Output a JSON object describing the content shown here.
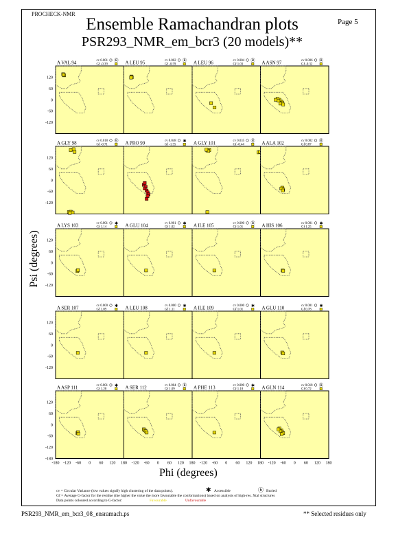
{
  "header": {
    "program": "PROCHECK-NMR",
    "title": "Ensemble Ramachandran plots",
    "subtitle": "PSR293_NMR_em_bcr3 (20 models)**",
    "page_label": "Page  5"
  },
  "footer": {
    "filename": "PSR293_NMR_em_bcr3_08_ensramach.ps",
    "note": "** Selected residues only",
    "legend_line1": "cv = Circular Variance (low values signify high clustering of the data points).",
    "accessible": "Accessible",
    "buried": "Buried",
    "legend_line2": "Gf = Average G-factor for the residue (the higher the value the more favourable the conformations) based on analysis of high-res. Xtal structures",
    "legend_line3": "Data points coloured according to G-factor:",
    "favourable": "Favourable",
    "unfavourable": "Unfavourable"
  },
  "colors": {
    "panel_bg": "#ffffa8",
    "favourable": "#e8d800",
    "unfavourable": "#cc1010",
    "region": "#555555"
  },
  "chart_data": {
    "type": "scatter",
    "xlabel": "Phi (degrees)",
    "ylabel": "Psi (degrees)",
    "xlim": [
      -180,
      180
    ],
    "ylim": [
      -180,
      180
    ],
    "xticks": [
      "-180",
      "-120",
      "-60",
      "0",
      "60",
      "120",
      "180"
    ],
    "yticks": [
      "120",
      "60",
      "0",
      "-60",
      "-120"
    ],
    "bottom_yticks": [
      "120",
      "60",
      "0",
      "-60",
      "-120",
      "-180"
    ],
    "panels": [
      {
        "residue": "A VAL 94",
        "cv": "cv 0.001",
        "gf": "Gf -0.39",
        "access": "buried",
        "points": [
          [
            -140,
            136
          ],
          [
            -135,
            130
          ],
          [
            -138,
            133
          ]
        ]
      },
      {
        "residue": "A LEU 95",
        "cv": "cv 0.002",
        "gf": "Gf -0.59",
        "access": "buried",
        "points": [
          [
            -140,
            124
          ],
          [
            -138,
            120
          ],
          [
            -142,
            118
          ]
        ]
      },
      {
        "residue": "A LEU 96",
        "cv": "cv 0.004",
        "gf": "Gf 1.03",
        "access": "buried",
        "points": [
          [
            -62,
            -41
          ],
          [
            -80,
            -18
          ]
        ]
      },
      {
        "residue": "A ASN 97",
        "cv": "cv 0.006",
        "gf": "Gf -0.32",
        "access": "buried",
        "points": [
          [
            -70,
            -10
          ],
          [
            -80,
            0
          ],
          [
            -90,
            5
          ],
          [
            -65,
            -15
          ],
          [
            -75,
            -20
          ],
          [
            -60,
            -25
          ],
          [
            -85,
            -5
          ],
          [
            -100,
            0
          ]
        ]
      },
      {
        "residue": "A GLY 98",
        "cv": "cv 0.018",
        "gf": "Gf -0.71",
        "access": "buried",
        "points": [
          [
            -100,
            160
          ],
          [
            -85,
            165
          ],
          [
            -80,
            150
          ],
          [
            -110,
            -170
          ],
          [
            -100,
            -168
          ],
          [
            -90,
            -172
          ],
          [
            -105,
            -175
          ]
        ]
      },
      {
        "residue": "A PRO 99",
        "cv": "cv 0.048",
        "gf": "Gf -1.55",
        "access": "accessible",
        "points": [
          [
            -75,
            -25
          ],
          [
            -65,
            -35
          ],
          [
            -70,
            -45
          ],
          [
            -60,
            -55
          ],
          [
            -55,
            -65
          ],
          [
            -70,
            -15
          ],
          [
            -50,
            -75
          ],
          [
            -55,
            -85
          ],
          [
            -60,
            -100
          ]
        ]
      },
      {
        "residue": "A GLY 101",
        "cv": "cv 0.035",
        "gf": "Gf -0.44",
        "access": "buried",
        "points": [
          [
            -100,
            158
          ],
          [
            -90,
            160
          ],
          [
            -95,
            155
          ],
          [
            -105,
            162
          ],
          [
            -100,
            -170
          ],
          [
            170,
            148
          ],
          [
            178,
            150
          ]
        ]
      },
      {
        "residue": "A ALA 102",
        "cv": "cv 0.002",
        "gf": "Gf 0.87",
        "access": "buried",
        "points": [
          [
            -65,
            -40
          ],
          [
            -60,
            -50
          ],
          [
            -70,
            -45
          ],
          [
            -62,
            -55
          ]
        ]
      },
      {
        "residue": "A LYS 103",
        "cv": "cv 0.001",
        "gf": "Gf 1.14",
        "access": "accessible",
        "points": [
          [
            -65,
            -45
          ],
          [
            -62,
            -40
          ]
        ]
      },
      {
        "residue": "A GLU 104",
        "cv": "cv 0.001",
        "gf": "Gf 1.02",
        "access": "accessible",
        "points": [
          [
            -63,
            -42
          ]
        ]
      },
      {
        "residue": "A ILE 105",
        "cv": "cv 0.000",
        "gf": "Gf 1.01",
        "access": "buried",
        "points": [
          [
            -63,
            -42
          ]
        ]
      },
      {
        "residue": "A HIS 106",
        "cv": "cv 0.001",
        "gf": "Gf 1.25",
        "access": "accessible",
        "points": [
          [
            -63,
            -42
          ],
          [
            -60,
            -44
          ]
        ]
      },
      {
        "residue": "A SER 107",
        "cv": "cv 0.000",
        "gf": "Gf 1.09",
        "access": "accessible",
        "points": [
          [
            -63,
            -42
          ]
        ]
      },
      {
        "residue": "A LEU 108",
        "cv": "cv 0.000",
        "gf": "Gf 1.11",
        "access": "accessible",
        "points": [
          [
            -63,
            -42
          ]
        ]
      },
      {
        "residue": "A ILE 109",
        "cv": "cv 0.000",
        "gf": "Gf 1.01",
        "access": "accessible",
        "points": [
          [
            -63,
            -42
          ]
        ]
      },
      {
        "residue": "A GLU 110",
        "cv": "cv 0.001",
        "gf": "Gf 0.78",
        "access": "accessible",
        "points": [
          [
            -65,
            -40
          ],
          [
            -60,
            -45
          ]
        ]
      },
      {
        "residue": "A ASP 111",
        "cv": "cv 0.001",
        "gf": "Gf 1.28",
        "access": "accessible",
        "points": [
          [
            -65,
            -45
          ],
          [
            -62,
            -40
          ],
          [
            -60,
            -48
          ]
        ]
      },
      {
        "residue": "A SER 112",
        "cv": "cv 0.004",
        "gf": "Gf 1.09",
        "access": "buried",
        "points": [
          [
            -75,
            -25
          ],
          [
            -70,
            -30
          ],
          [
            -65,
            -35
          ],
          [
            -60,
            -42
          ]
        ]
      },
      {
        "residue": "A PHE 113",
        "cv": "cv 0.000",
        "gf": "Gf 1.18",
        "access": "accessible",
        "points": [
          [
            -63,
            -42
          ]
        ]
      },
      {
        "residue": "A GLN 114",
        "cv": "cv 0.018",
        "gf": "Gf 0.72",
        "access": "buried",
        "points": [
          [
            -80,
            -20
          ],
          [
            -70,
            -30
          ],
          [
            -65,
            -40
          ],
          [
            -60,
            -45
          ],
          [
            -75,
            -35
          ],
          [
            -85,
            -25
          ],
          [
            -68,
            -50
          ]
        ]
      }
    ]
  }
}
